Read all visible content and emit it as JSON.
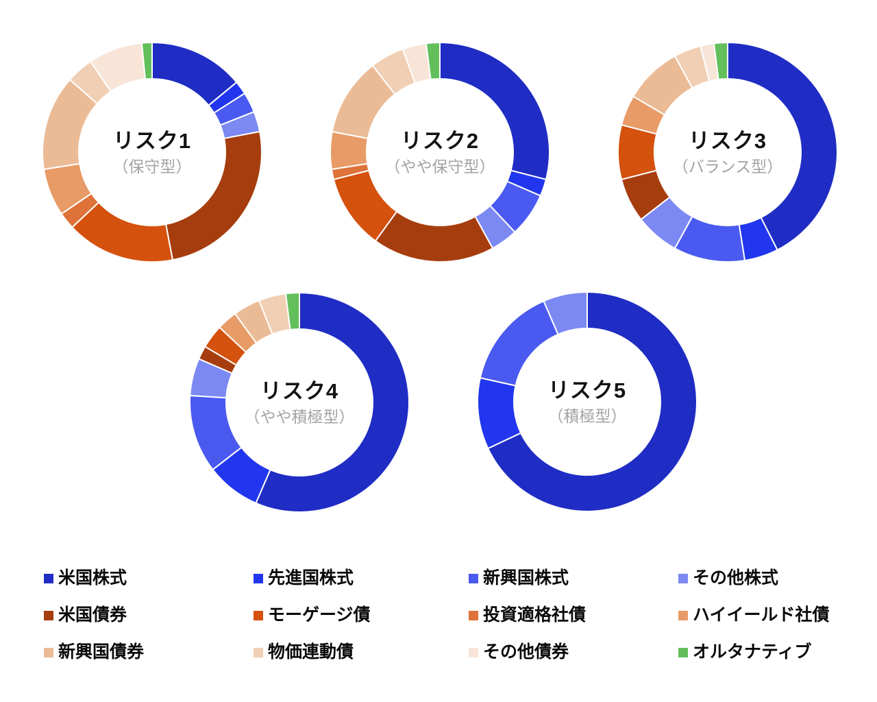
{
  "page": {
    "background": "#ffffff"
  },
  "chart_data": {
    "type": "pie",
    "variant": "donut",
    "legend_position": "bottom",
    "inner_radius_ratio": 0.67,
    "slice_border_color": "#ffffff",
    "subtitle_color": "#a3a3a3",
    "categories": [
      "米国株式",
      "先進国株式",
      "新興国株式",
      "その他株式",
      "米国債券",
      "モーゲージ債",
      "投資適格社債",
      "ハイイールド社債",
      "新興国債券",
      "物価連動債",
      "その他債券",
      "オルタナティブ"
    ],
    "category_keys": [
      "us-stocks",
      "developed-stocks",
      "em-stocks",
      "other-stocks",
      "us-bonds",
      "mortgage-bonds",
      "ig-corporate-bonds",
      "high-yield-bonds",
      "em-bonds",
      "inflation-linked-bonds",
      "other-bonds",
      "alternatives"
    ],
    "colors": [
      "#1f2dc4",
      "#2136ee",
      "#4a5af0",
      "#7c89f3",
      "#a63d0f",
      "#d4510e",
      "#de7238",
      "#e89b67",
      "#ebbb96",
      "#f0cfb4",
      "#f8e5d8",
      "#62bf5c"
    ],
    "charts": [
      {
        "title": "リスク1",
        "subtitle": "（保守型）",
        "values": [
          14,
          2,
          3,
          3,
          25,
          16,
          2.5,
          7,
          14,
          4,
          8,
          1.5
        ]
      },
      {
        "title": "リスク2",
        "subtitle": "（やや保守型）",
        "values": [
          29,
          2.5,
          6.5,
          4,
          18,
          11,
          1.5,
          5.5,
          11.5,
          5,
          3.5,
          2
        ]
      },
      {
        "title": "リスク3",
        "subtitle": "（バランス型）",
        "values": [
          42.5,
          5,
          10.5,
          6.5,
          6.5,
          8,
          0,
          4.5,
          8.5,
          4,
          2,
          2
        ]
      },
      {
        "title": "リスク4",
        "subtitle": "（やや積極型）",
        "values": [
          56.5,
          8,
          11.5,
          5.5,
          2,
          3.5,
          0,
          3,
          4,
          4,
          0,
          2
        ]
      },
      {
        "title": "リスク5",
        "subtitle": "（積極型）",
        "values": [
          68,
          10.5,
          15,
          6.5,
          0,
          0,
          0,
          0,
          0,
          0,
          0,
          0
        ]
      }
    ]
  }
}
